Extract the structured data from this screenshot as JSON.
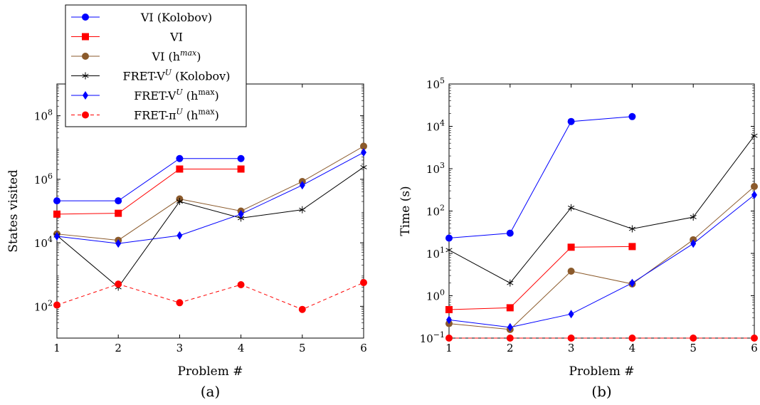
{
  "figure": {
    "legend": {
      "entries": [
        {
          "prefix": "VI (Kolobov)",
          "sup": "",
          "suffix": ""
        },
        {
          "prefix": "VI",
          "sup": "",
          "suffix": ""
        },
        {
          "prefix": "VI (h",
          "sup": "max",
          "suffix": ")"
        },
        {
          "prefix": "FRET-V",
          "sup": "U",
          "suffix": " (Kolobov)"
        },
        {
          "prefix": "FRET-V",
          "sup": "U",
          "suffix": " (h",
          "sup2": "max",
          "suffix2": ")"
        },
        {
          "prefix": "FRET-π",
          "sup": "U",
          "suffix": " (h",
          "sup2": "max",
          "suffix2": ")"
        }
      ]
    }
  },
  "chart_data": [
    {
      "type": "line",
      "caption": "(a)",
      "xlabel": "Problem #",
      "ylabel": "States visited",
      "yscale": "log",
      "ylim": [
        10,
        1000000000
      ],
      "xlim": [
        1,
        6
      ],
      "x_ticks": [
        "1",
        "2",
        "3",
        "4",
        "5",
        "6"
      ],
      "y_ticks": [
        {
          "base": "10",
          "exp": "2",
          "value": 100
        },
        {
          "base": "10",
          "exp": "4",
          "value": 10000
        },
        {
          "base": "10",
          "exp": "6",
          "value": 1000000
        },
        {
          "base": "10",
          "exp": "8",
          "value": 100000000
        }
      ],
      "series": [
        {
          "name": "VI (Kolobov)",
          "color": "#0000ff",
          "marker": "circle",
          "dash": "",
          "x": [
            1,
            2,
            3,
            4
          ],
          "y": [
            210000,
            210000,
            4500000,
            4500000
          ]
        },
        {
          "name": "VI",
          "color": "#ff0000",
          "marker": "square",
          "dash": "",
          "x": [
            1,
            2,
            3,
            4
          ],
          "y": [
            80000,
            85000,
            2100000,
            2100000
          ]
        },
        {
          "name": "VI (hmax)",
          "color": "#8b5a2b",
          "marker": "circle",
          "dash": "",
          "x": [
            1,
            2,
            3,
            4,
            5,
            6
          ],
          "y": [
            19000,
            12000,
            240000,
            100000,
            850000,
            11000000
          ]
        },
        {
          "name": "FRET-VU (Kolobov)",
          "color": "#000000",
          "marker": "star",
          "dash": "",
          "x": [
            1,
            2,
            3,
            4,
            5,
            6
          ],
          "y": [
            17000,
            400,
            200000,
            60000,
            110000,
            2400000
          ]
        },
        {
          "name": "FRET-VU (hmax)",
          "color": "#0000ff",
          "marker": "diamond",
          "dash": "",
          "x": [
            1,
            2,
            3,
            4,
            5,
            6
          ],
          "y": [
            16000,
            9500,
            17000,
            80000,
            650000,
            7000000
          ]
        },
        {
          "name": "FRET-πU (hmax)",
          "color": "#ff0000",
          "marker": "circle",
          "dash": "5,4",
          "x": [
            1,
            2,
            3,
            4,
            5,
            6
          ],
          "y": [
            110,
            500,
            130,
            480,
            80,
            560
          ]
        }
      ]
    },
    {
      "type": "line",
      "caption": "(b)",
      "xlabel": "Problem #",
      "ylabel": "Time (s)",
      "yscale": "log",
      "ylim": [
        0.1,
        100000
      ],
      "xlim": [
        1,
        6
      ],
      "x_ticks": [
        "1",
        "2",
        "3",
        "4",
        "5",
        "6"
      ],
      "y_ticks": [
        {
          "base": "10",
          "exp": "−1",
          "value": 0.1
        },
        {
          "base": "10",
          "exp": "0",
          "value": 1
        },
        {
          "base": "10",
          "exp": "1",
          "value": 10
        },
        {
          "base": "10",
          "exp": "2",
          "value": 100
        },
        {
          "base": "10",
          "exp": "3",
          "value": 1000
        },
        {
          "base": "10",
          "exp": "4",
          "value": 10000
        },
        {
          "base": "10",
          "exp": "5",
          "value": 100000
        }
      ],
      "series": [
        {
          "name": "VI (Kolobov)",
          "color": "#0000ff",
          "marker": "circle",
          "dash": "",
          "x": [
            1,
            2,
            3,
            4
          ],
          "y": [
            23,
            30,
            13000,
            17000
          ]
        },
        {
          "name": "VI",
          "color": "#ff0000",
          "marker": "square",
          "dash": "",
          "x": [
            1,
            2,
            3,
            4
          ],
          "y": [
            0.47,
            0.52,
            14,
            14.5
          ]
        },
        {
          "name": "VI (hmax)",
          "color": "#8b5a2b",
          "marker": "circle",
          "dash": "",
          "x": [
            1,
            2,
            3,
            4,
            5,
            6
          ],
          "y": [
            0.22,
            0.16,
            3.8,
            1.9,
            21,
            380
          ]
        },
        {
          "name": "FRET-VU (Kolobov)",
          "color": "#000000",
          "marker": "star",
          "dash": "",
          "x": [
            1,
            2,
            3,
            4,
            5,
            6
          ],
          "y": [
            12,
            2,
            120,
            38,
            72,
            6000
          ]
        },
        {
          "name": "FRET-VU (hmax)",
          "color": "#0000ff",
          "marker": "diamond",
          "dash": "",
          "x": [
            1,
            2,
            3,
            4,
            5,
            6
          ],
          "y": [
            0.27,
            0.18,
            0.37,
            2,
            17,
            240
          ]
        },
        {
          "name": "FRET-πU (hmax)",
          "color": "#ff0000",
          "marker": "circle",
          "dash": "5,4",
          "x": [
            1,
            2,
            3,
            4,
            5,
            6
          ],
          "y": [
            0.1,
            0.1,
            0.1,
            0.1,
            0.1,
            0.1
          ]
        }
      ]
    }
  ]
}
